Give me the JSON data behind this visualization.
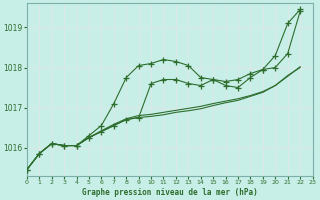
{
  "background_color": "#c8eee8",
  "grid_color": "#aad4cc",
  "line_color": "#2d6e2d",
  "marker_color": "#2d6e2d",
  "xlabel": "Graphe pression niveau de la mer (hPa)",
  "xlim": [
    0,
    23
  ],
  "ylim": [
    1015.3,
    1019.6
  ],
  "yticks": [
    1016,
    1017,
    1018,
    1019
  ],
  "xticks": [
    0,
    1,
    2,
    3,
    4,
    5,
    6,
    7,
    8,
    9,
    10,
    11,
    12,
    13,
    14,
    15,
    16,
    17,
    18,
    19,
    20,
    21,
    22,
    23
  ],
  "series": [
    {
      "y": [
        1015.45,
        1015.85,
        1016.1,
        1016.05,
        1016.05,
        1016.3,
        1016.55,
        1017.1,
        1017.75,
        1018.05,
        1018.1,
        1018.2,
        1018.15,
        1018.05,
        1017.75,
        1017.7,
        1017.55,
        1017.5,
        1017.75,
        1017.95,
        1018.3,
        1019.1,
        1019.45
      ],
      "has_markers": true
    },
    {
      "y": [
        1015.45,
        1015.85,
        1016.1,
        1016.05,
        1016.05,
        1016.25,
        1016.4,
        1016.55,
        1016.7,
        1016.75,
        1017.6,
        1017.7,
        1017.7,
        1017.6,
        1017.55,
        1017.7,
        1017.65,
        1017.7,
        1017.85,
        1017.95,
        1018.0,
        1018.35,
        1019.4
      ],
      "has_markers": true
    },
    {
      "y": [
        1015.45,
        1015.85,
        1016.1,
        1016.05,
        1016.05,
        1016.25,
        1016.4,
        1016.55,
        1016.7,
        1016.75,
        1016.78,
        1016.82,
        1016.88,
        1016.92,
        1016.97,
        1017.05,
        1017.12,
        1017.18,
        1017.28,
        1017.38,
        1017.55,
        1017.8,
        1018.0
      ],
      "has_markers": false
    },
    {
      "y": [
        1015.45,
        1015.85,
        1016.1,
        1016.05,
        1016.05,
        1016.25,
        1016.42,
        1016.58,
        1016.72,
        1016.8,
        1016.83,
        1016.88,
        1016.93,
        1016.98,
        1017.03,
        1017.1,
        1017.16,
        1017.22,
        1017.3,
        1017.4,
        1017.55,
        1017.78,
        1018.02
      ],
      "has_markers": false
    }
  ]
}
